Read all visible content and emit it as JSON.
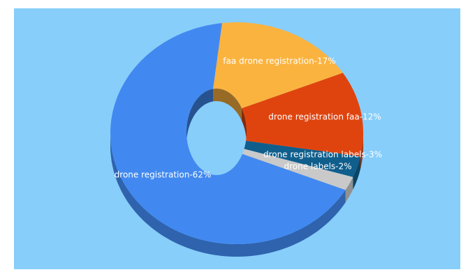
{
  "chart_data": {
    "type": "donut3d",
    "values": [
      17,
      12,
      3,
      2,
      62
    ],
    "value_labels": [
      "faa drone registration-17%",
      "drone registration faa-12%",
      "drone registration labels-3%",
      "drone labels-2%",
      "drone registration-62%"
    ],
    "colors": [
      "#fbb33f",
      "#e0440e",
      "#0f5e8c",
      "#c9c9c9",
      "#4189f0"
    ]
  }
}
